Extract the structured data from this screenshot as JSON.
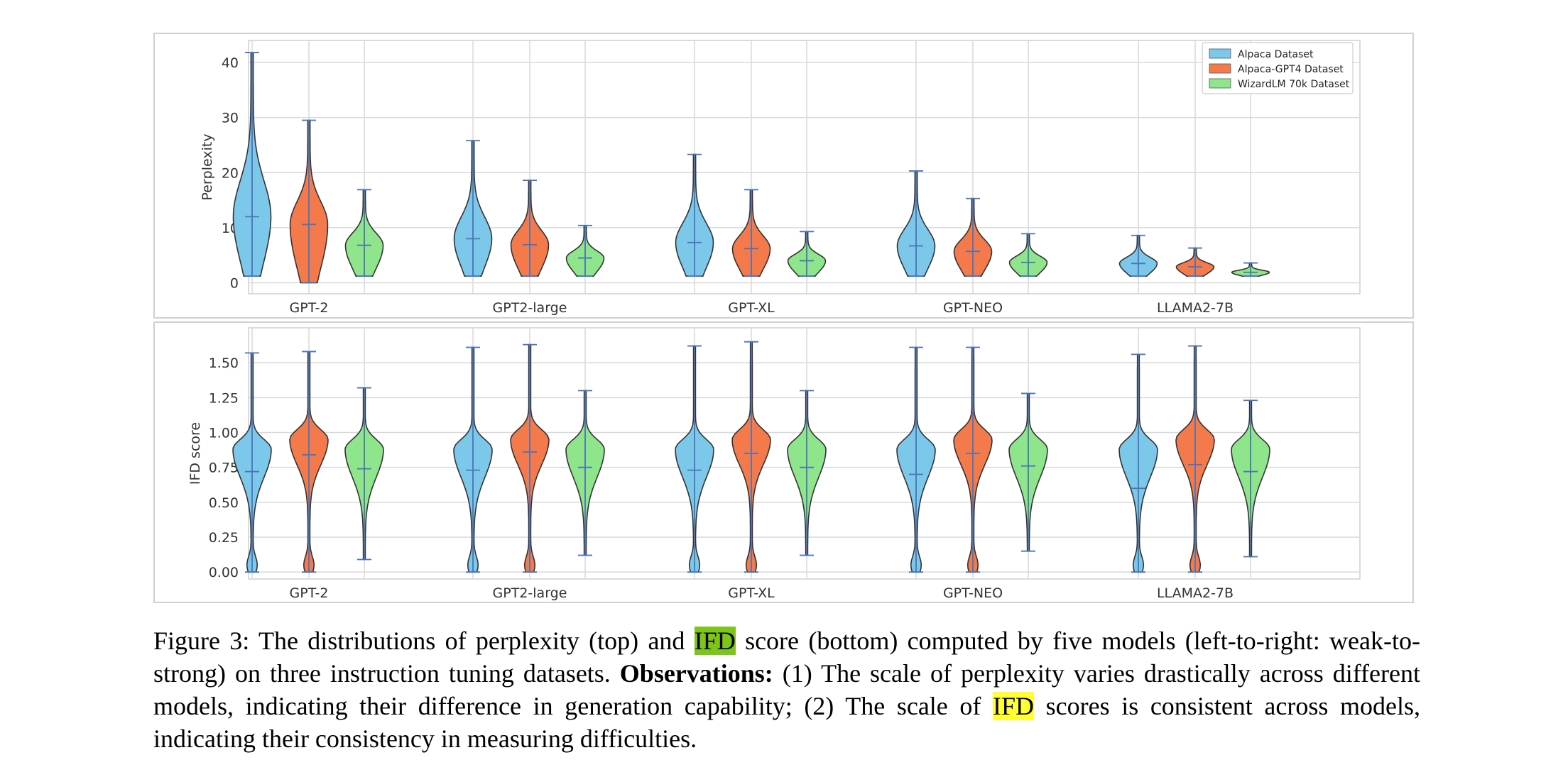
{
  "colors": {
    "alpaca": "#7cc8ea",
    "gpt4": "#f47a4c",
    "wizard": "#8ee58c",
    "stat_line": "#4a74b8",
    "outline": "#333333",
    "grid": "#d9d9d9"
  },
  "chart_data": [
    {
      "type": "violin",
      "panel": "top",
      "ylabel": "Perplexity",
      "xlabel": "",
      "ylim": [
        -2,
        44
      ],
      "yticks": [
        0,
        10,
        20,
        30,
        40
      ],
      "grid": true,
      "legend_position": "top-right",
      "categories": [
        "GPT-2",
        "GPT2-large",
        "GPT-XL",
        "GPT-NEO",
        "LLAMA2-7B"
      ],
      "series": [
        {
          "name": "Alpaca Dataset",
          "color": "#7cc8ea",
          "stats": [
            {
              "min": 1.2,
              "max": 41.8,
              "median": 12
            },
            {
              "min": 1.2,
              "max": 25.8,
              "median": 8
            },
            {
              "min": 1.2,
              "max": 23.3,
              "median": 7.3
            },
            {
              "min": 1.2,
              "max": 20.3,
              "median": 6.7
            },
            {
              "min": 1.2,
              "max": 8.6,
              "median": 3.5
            }
          ]
        },
        {
          "name": "Alpaca-GPT4 Dataset",
          "color": "#f47a4c",
          "stats": [
            {
              "min": 0,
              "max": 29.5,
              "median": 10.6
            },
            {
              "min": 1.2,
              "max": 18.6,
              "median": 6.9
            },
            {
              "min": 1.2,
              "max": 16.9,
              "median": 6.2
            },
            {
              "min": 1.2,
              "max": 15.3,
              "median": 5.7
            },
            {
              "min": 1.2,
              "max": 6.3,
              "median": 2.9
            }
          ]
        },
        {
          "name": "WizardLM 70k Dataset",
          "color": "#8ee58c",
          "stats": [
            {
              "min": 1.2,
              "max": 16.9,
              "median": 6.8
            },
            {
              "min": 1.2,
              "max": 10.4,
              "median": 4.5
            },
            {
              "min": 1.2,
              "max": 9.3,
              "median": 4
            },
            {
              "min": 1.2,
              "max": 8.9,
              "median": 3.7
            },
            {
              "min": 1.2,
              "max": 3.6,
              "median": 1.9
            }
          ]
        }
      ]
    },
    {
      "type": "violin",
      "panel": "bottom",
      "ylabel": "IFD score",
      "xlabel": "",
      "ylim": [
        -0.05,
        1.75
      ],
      "yticks": [
        0.0,
        0.25,
        0.5,
        0.75,
        1.0,
        1.25,
        1.5
      ],
      "ytick_labels": [
        "0.00",
        "0.25",
        "0.50",
        "0.75",
        "1.00",
        "1.25",
        "1.50"
      ],
      "grid": true,
      "categories": [
        "GPT-2",
        "GPT2-large",
        "GPT-XL",
        "GPT-NEO",
        "LLAMA2-7B"
      ],
      "series": [
        {
          "name": "Alpaca Dataset",
          "color": "#7cc8ea",
          "stats": [
            {
              "min": 0,
              "max": 1.57,
              "median": 0.72
            },
            {
              "min": 0,
              "max": 1.61,
              "median": 0.73
            },
            {
              "min": 0,
              "max": 1.62,
              "median": 0.73
            },
            {
              "min": 0,
              "max": 1.61,
              "median": 0.7
            },
            {
              "min": 0,
              "max": 1.56,
              "median": 0.6
            }
          ]
        },
        {
          "name": "Alpaca-GPT4 Dataset",
          "color": "#f47a4c",
          "stats": [
            {
              "min": 0,
              "max": 1.58,
              "median": 0.84
            },
            {
              "min": 0,
              "max": 1.63,
              "median": 0.86
            },
            {
              "min": 0,
              "max": 1.65,
              "median": 0.85
            },
            {
              "min": 0,
              "max": 1.61,
              "median": 0.85
            },
            {
              "min": 0,
              "max": 1.62,
              "median": 0.77
            }
          ]
        },
        {
          "name": "WizardLM 70k Dataset",
          "color": "#8ee58c",
          "stats": [
            {
              "min": 0.09,
              "max": 1.32,
              "median": 0.74
            },
            {
              "min": 0.12,
              "max": 1.3,
              "median": 0.75
            },
            {
              "min": 0.12,
              "max": 1.3,
              "median": 0.75
            },
            {
              "min": 0.15,
              "max": 1.28,
              "median": 0.76
            },
            {
              "min": 0.11,
              "max": 1.23,
              "median": 0.72
            }
          ]
        }
      ]
    }
  ],
  "caption": {
    "label": "Figure 3: The distributions of perplexity (top) and ",
    "ifd1": "IFD",
    "part2": " score (bottom) computed by five models (left-to-right: weak-to-strong) on three instruction tuning datasets. ",
    "obs_label": "Observations:",
    "part3": " (1) The scale of perplexity varies drastically across different models, indicating their difference in generation capability; (2) The scale of ",
    "ifd2": "IFD",
    "part4": " scores is consistent across models, indicating their consistency in measuring difficulties."
  }
}
